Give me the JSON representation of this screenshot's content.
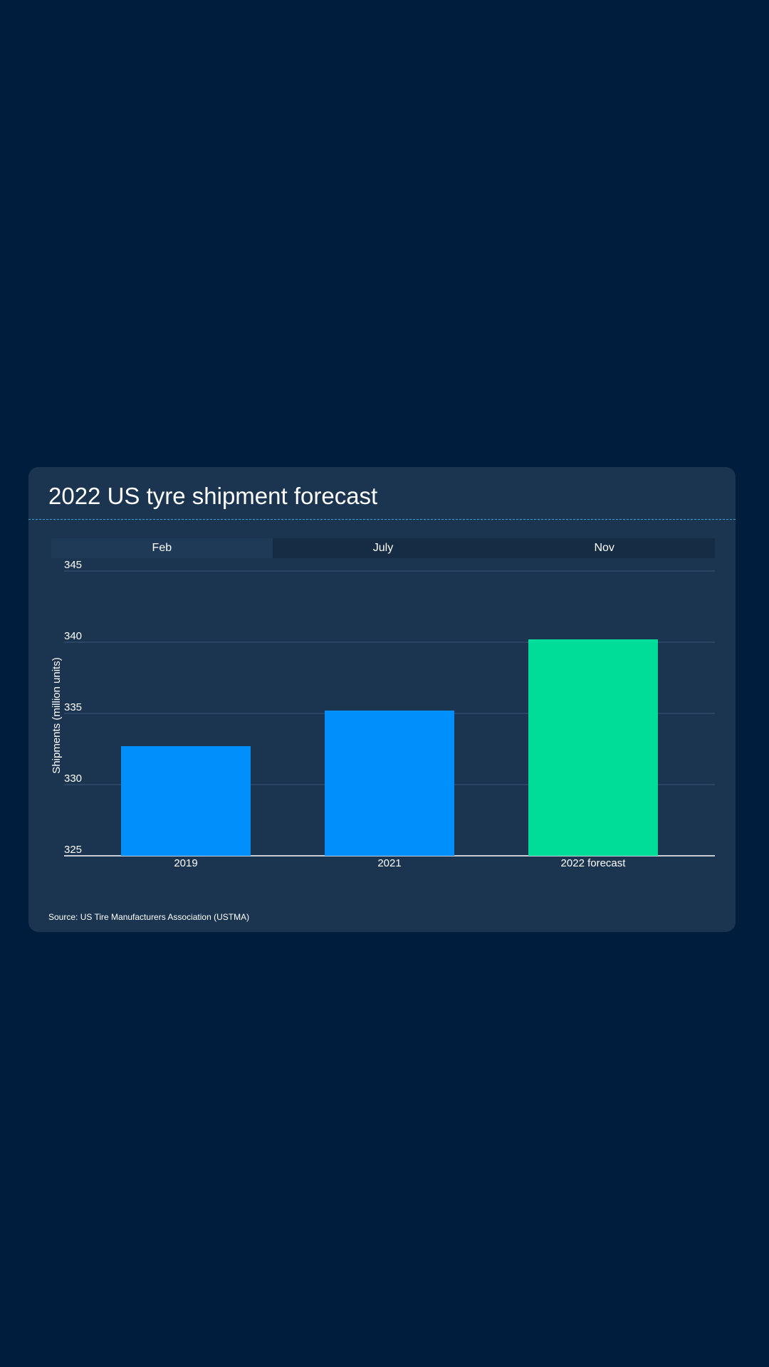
{
  "title": "2022 US tyre shipment forecast",
  "tabs": [
    {
      "label": "Feb",
      "active": true
    },
    {
      "label": "July",
      "active": false
    },
    {
      "label": "Nov",
      "active": false
    }
  ],
  "source": "Source: US Tire Manufacturers Association (USTMA)",
  "colors": {
    "page_background": "#001d3d",
    "card_background": "#1b3551",
    "actual_bar": "#008ffb",
    "forecast_bar": "#00dd99",
    "accent_line": "#2ea6d8"
  },
  "chart_data": {
    "type": "bar",
    "categories": [
      "2019",
      "2021",
      "2022 forecast"
    ],
    "values": [
      332.7,
      335.2,
      340.2
    ],
    "bar_colors": [
      "#008ffb",
      "#008ffb",
      "#00dd99"
    ],
    "ylabel": "Shipments (million units)",
    "ylim": [
      325,
      345
    ],
    "yticks": [
      325,
      330,
      335,
      340,
      345
    ],
    "grid": true
  }
}
